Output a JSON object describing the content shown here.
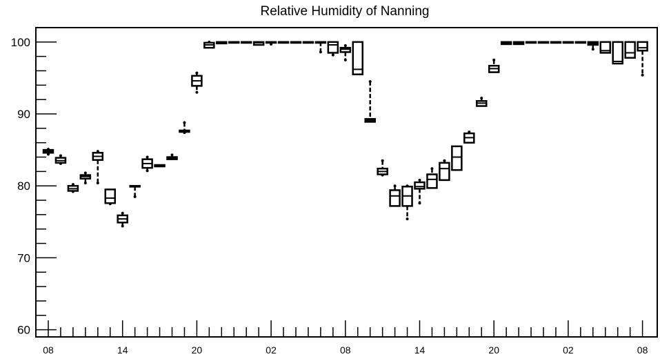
{
  "chart_data": {
    "type": "box",
    "title": "Relative Humidity of Nanning",
    "xlabel": "",
    "ylabel": "",
    "ylim": [
      59,
      102
    ],
    "y_ticks": [
      60,
      70,
      80,
      90,
      100
    ],
    "x_tick_labels": [
      {
        "index": 0,
        "label": "08"
      },
      {
        "index": 6,
        "label": "14"
      },
      {
        "index": 12,
        "label": "20"
      },
      {
        "index": 18,
        "label": "02"
      },
      {
        "index": 24,
        "label": "08"
      },
      {
        "index": 30,
        "label": "14"
      },
      {
        "index": 36,
        "label": "20"
      },
      {
        "index": 42,
        "label": "02"
      },
      {
        "index": 48,
        "label": "08"
      }
    ],
    "grid": false,
    "legend": "none",
    "line_color": "#000000",
    "boxes": [
      {
        "index": 0,
        "min": 84.4,
        "q1": 84.6,
        "median": 84.8,
        "q3": 85.0,
        "max": 85.1
      },
      {
        "index": 1,
        "min": 83.1,
        "q1": 83.2,
        "median": 83.5,
        "q3": 83.9,
        "max": 84.2
      },
      {
        "index": 2,
        "min": 79.2,
        "q1": 79.3,
        "median": 79.6,
        "q3": 80.0,
        "max": 80.2
      },
      {
        "index": 3,
        "min": 80.4,
        "q1": 81.0,
        "median": 81.3,
        "q3": 81.5,
        "max": 81.8
      },
      {
        "index": 4,
        "min": 80.4,
        "q1": 83.6,
        "median": 84.1,
        "q3": 84.6,
        "max": 84.8
      },
      {
        "index": 5,
        "min": 77.5,
        "q1": 77.6,
        "median": 78.3,
        "q3": 79.5,
        "max": 79.5
      },
      {
        "index": 6,
        "min": 74.4,
        "q1": 74.9,
        "median": 75.4,
        "q3": 75.9,
        "max": 76.2
      },
      {
        "index": 7,
        "min": 78.5,
        "q1": 79.9,
        "median": 80.0,
        "q3": 80.0,
        "max": 80.0
      },
      {
        "index": 8,
        "min": 82.1,
        "q1": 82.5,
        "median": 83.1,
        "q3": 83.7,
        "max": 84.0
      },
      {
        "index": 9,
        "min": 82.7,
        "q1": 82.7,
        "median": 82.8,
        "q3": 82.9,
        "max": 82.9
      },
      {
        "index": 10,
        "min": 83.7,
        "q1": 83.7,
        "median": 83.9,
        "q3": 84.0,
        "max": 84.3
      },
      {
        "index": 11,
        "min": 87.4,
        "q1": 87.5,
        "median": 87.6,
        "q3": 87.7,
        "max": 88.8
      },
      {
        "index": 12,
        "min": 93.0,
        "q1": 93.9,
        "median": 94.6,
        "q3": 95.3,
        "max": 95.7
      },
      {
        "index": 13,
        "min": 99.2,
        "q1": 99.2,
        "median": 99.6,
        "q3": 99.9,
        "max": 100.0
      },
      {
        "index": 14,
        "min": 99.8,
        "q1": 99.8,
        "median": 99.9,
        "q3": 100.0,
        "max": 100.0
      },
      {
        "index": 15,
        "min": 100.0,
        "q1": 100.0,
        "median": 100.0,
        "q3": 100.0,
        "max": 100.0
      },
      {
        "index": 16,
        "min": 100.0,
        "q1": 100.0,
        "median": 100.0,
        "q3": 100.0,
        "max": 100.0
      },
      {
        "index": 17,
        "min": 99.6,
        "q1": 99.6,
        "median": 99.9,
        "q3": 100.0,
        "max": 100.0
      },
      {
        "index": 18,
        "min": 99.7,
        "q1": 99.9,
        "median": 100.0,
        "q3": 100.0,
        "max": 100.0
      },
      {
        "index": 19,
        "min": 100.0,
        "q1": 100.0,
        "median": 100.0,
        "q3": 100.0,
        "max": 100.0
      },
      {
        "index": 20,
        "min": 100.0,
        "q1": 100.0,
        "median": 100.0,
        "q3": 100.0,
        "max": 100.0
      },
      {
        "index": 21,
        "min": 100.0,
        "q1": 100.0,
        "median": 100.0,
        "q3": 100.0,
        "max": 100.0
      },
      {
        "index": 22,
        "min": 98.6,
        "q1": 100.0,
        "median": 100.0,
        "q3": 100.0,
        "max": 100.0
      },
      {
        "index": 23,
        "min": 98.2,
        "q1": 98.5,
        "median": 99.6,
        "q3": 100.0,
        "max": 100.0
      },
      {
        "index": 24,
        "min": 97.5,
        "q1": 98.6,
        "median": 99.0,
        "q3": 99.2,
        "max": 99.5
      },
      {
        "index": 25,
        "min": 95.5,
        "q1": 95.5,
        "median": 96.2,
        "q3": 100.0,
        "max": 100.0
      },
      {
        "index": 26,
        "min": 88.9,
        "q1": 88.9,
        "median": 89.1,
        "q3": 89.3,
        "max": 94.5
      },
      {
        "index": 27,
        "min": 81.5,
        "q1": 81.6,
        "median": 82.0,
        "q3": 82.4,
        "max": 83.5
      },
      {
        "index": 28,
        "min": 77.2,
        "q1": 77.2,
        "median": 78.6,
        "q3": 79.4,
        "max": 80.0
      },
      {
        "index": 29,
        "min": 75.4,
        "q1": 77.2,
        "median": 78.6,
        "q3": 79.9,
        "max": 80.0
      },
      {
        "index": 30,
        "min": 77.6,
        "q1": 79.6,
        "median": 79.9,
        "q3": 80.5,
        "max": 80.8
      },
      {
        "index": 31,
        "min": 79.7,
        "q1": 79.7,
        "median": 80.9,
        "q3": 81.6,
        "max": 82.4
      },
      {
        "index": 32,
        "min": 80.8,
        "q1": 80.8,
        "median": 82.4,
        "q3": 83.2,
        "max": 83.5
      },
      {
        "index": 33,
        "min": 82.2,
        "q1": 82.2,
        "median": 84.0,
        "q3": 85.5,
        "max": 85.5
      },
      {
        "index": 34,
        "min": 86.0,
        "q1": 86.0,
        "median": 86.7,
        "q3": 87.3,
        "max": 87.5
      },
      {
        "index": 35,
        "min": 91.1,
        "q1": 91.1,
        "median": 91.5,
        "q3": 91.8,
        "max": 92.2
      },
      {
        "index": 36,
        "min": 95.8,
        "q1": 95.8,
        "median": 96.3,
        "q3": 96.7,
        "max": 97.5
      },
      {
        "index": 37,
        "min": 99.7,
        "q1": 99.7,
        "median": 99.9,
        "q3": 100.0,
        "max": 100.0
      },
      {
        "index": 38,
        "min": 99.7,
        "q1": 99.7,
        "median": 99.9,
        "q3": 100.0,
        "max": 100.0
      },
      {
        "index": 39,
        "min": 100.0,
        "q1": 100.0,
        "median": 100.0,
        "q3": 100.0,
        "max": 100.0
      },
      {
        "index": 40,
        "min": 100.0,
        "q1": 100.0,
        "median": 100.0,
        "q3": 100.0,
        "max": 100.0
      },
      {
        "index": 41,
        "min": 100.0,
        "q1": 100.0,
        "median": 100.0,
        "q3": 100.0,
        "max": 100.0
      },
      {
        "index": 42,
        "min": 100.0,
        "q1": 100.0,
        "median": 100.0,
        "q3": 100.0,
        "max": 100.0
      },
      {
        "index": 43,
        "min": 100.0,
        "q1": 100.0,
        "median": 100.0,
        "q3": 100.0,
        "max": 100.0
      },
      {
        "index": 44,
        "min": 99.0,
        "q1": 99.6,
        "median": 99.8,
        "q3": 100.0,
        "max": 100.0
      },
      {
        "index": 45,
        "min": 98.5,
        "q1": 98.5,
        "median": 98.8,
        "q3": 100.0,
        "max": 100.0
      },
      {
        "index": 46,
        "min": 97.0,
        "q1": 97.0,
        "median": 97.3,
        "q3": 100.0,
        "max": 100.0
      },
      {
        "index": 47,
        "min": 97.8,
        "q1": 97.8,
        "median": 98.5,
        "q3": 100.0,
        "max": 100.0
      },
      {
        "index": 48,
        "min": 95.4,
        "q1": 98.8,
        "median": 99.2,
        "q3": 100.0,
        "max": 100.0
      }
    ]
  }
}
